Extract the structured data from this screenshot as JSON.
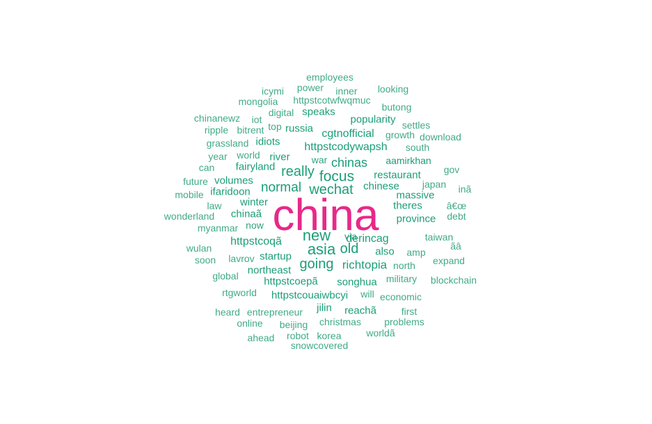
{
  "colors": {
    "primary": "#E7298A",
    "dark": "#1B9E77",
    "mid": "#2FA481",
    "light": "#40AA88"
  },
  "words": [
    {
      "text": "china",
      "tone": "primary"
    },
    {
      "text": "new",
      "tone": "dark"
    },
    {
      "text": "asia",
      "tone": "dark"
    },
    {
      "text": "going",
      "tone": "dark"
    },
    {
      "text": "old",
      "tone": "dark"
    },
    {
      "text": "focus",
      "tone": "dark"
    },
    {
      "text": "really",
      "tone": "dark"
    },
    {
      "text": "normal",
      "tone": "dark"
    },
    {
      "text": "wechat",
      "tone": "dark"
    },
    {
      "text": "chinas",
      "tone": "dark"
    },
    {
      "text": "richtopia",
      "tone": "dark"
    },
    {
      "text": "httpstcodywapsh",
      "tone": "dark"
    },
    {
      "text": "cgtnofficial",
      "tone": "dark"
    },
    {
      "text": "httpstcoqã",
      "tone": "dark"
    },
    {
      "text": "derincag",
      "tone": "dark"
    },
    {
      "text": "songhua",
      "tone": "dark"
    },
    {
      "text": "httpstcoepã",
      "tone": "dark"
    },
    {
      "text": "httpstcouaiwbcyi",
      "tone": "dark"
    },
    {
      "text": "reachã",
      "tone": "dark"
    },
    {
      "text": "chinese",
      "tone": "dark"
    },
    {
      "text": "restaurant",
      "tone": "dark"
    },
    {
      "text": "aamirkhan",
      "tone": "dark"
    },
    {
      "text": "popularity",
      "tone": "dark"
    },
    {
      "text": "speaks",
      "tone": "dark"
    },
    {
      "text": "russia",
      "tone": "dark"
    },
    {
      "text": "river",
      "tone": "dark"
    },
    {
      "text": "fairyland",
      "tone": "dark"
    },
    {
      "text": "volumes",
      "tone": "dark"
    },
    {
      "text": "ifaridoon",
      "tone": "dark"
    },
    {
      "text": "winter",
      "tone": "dark"
    },
    {
      "text": "chinaã",
      "tone": "dark"
    },
    {
      "text": "northeast",
      "tone": "dark"
    },
    {
      "text": "startup",
      "tone": "dark"
    },
    {
      "text": "massive",
      "tone": "dark"
    },
    {
      "text": "theres",
      "tone": "dark"
    },
    {
      "text": "province",
      "tone": "dark"
    },
    {
      "text": "also",
      "tone": "dark"
    },
    {
      "text": "jilin",
      "tone": "dark"
    },
    {
      "text": "idiots",
      "tone": "dark"
    },
    {
      "text": "via",
      "tone": "mid"
    },
    {
      "text": "now",
      "tone": "mid"
    },
    {
      "text": "war",
      "tone": "mid"
    },
    {
      "text": "employees",
      "tone": "light"
    },
    {
      "text": "power",
      "tone": "light"
    },
    {
      "text": "icymi",
      "tone": "light"
    },
    {
      "text": "inner",
      "tone": "light"
    },
    {
      "text": "looking",
      "tone": "light"
    },
    {
      "text": "mongolia",
      "tone": "light"
    },
    {
      "text": "httpstcotwfwqmuc",
      "tone": "light"
    },
    {
      "text": "butong",
      "tone": "light"
    },
    {
      "text": "digital",
      "tone": "light"
    },
    {
      "text": "chinanewz",
      "tone": "light"
    },
    {
      "text": "iot",
      "tone": "light"
    },
    {
      "text": "settles",
      "tone": "light"
    },
    {
      "text": "ripple",
      "tone": "light"
    },
    {
      "text": "bitrent",
      "tone": "light"
    },
    {
      "text": "top",
      "tone": "light"
    },
    {
      "text": "growth",
      "tone": "light"
    },
    {
      "text": "download",
      "tone": "light"
    },
    {
      "text": "grassland",
      "tone": "light"
    },
    {
      "text": "south",
      "tone": "light"
    },
    {
      "text": "year",
      "tone": "light"
    },
    {
      "text": "world",
      "tone": "light"
    },
    {
      "text": "can",
      "tone": "light"
    },
    {
      "text": "gov",
      "tone": "light"
    },
    {
      "text": "future",
      "tone": "light"
    },
    {
      "text": "japan",
      "tone": "light"
    },
    {
      "text": "mobile",
      "tone": "light"
    },
    {
      "text": "inã",
      "tone": "light"
    },
    {
      "text": "law",
      "tone": "light"
    },
    {
      "text": "â€œ",
      "tone": "light"
    },
    {
      "text": "wonderland",
      "tone": "light"
    },
    {
      "text": "debt",
      "tone": "light"
    },
    {
      "text": "myanmar",
      "tone": "light"
    },
    {
      "text": "taiwan",
      "tone": "light"
    },
    {
      "text": "ãâ",
      "tone": "light"
    },
    {
      "text": "wulan",
      "tone": "light"
    },
    {
      "text": "amp",
      "tone": "light"
    },
    {
      "text": "soon",
      "tone": "light"
    },
    {
      "text": "lavrov",
      "tone": "light"
    },
    {
      "text": "expand",
      "tone": "light"
    },
    {
      "text": "north",
      "tone": "light"
    },
    {
      "text": "global",
      "tone": "light"
    },
    {
      "text": "military",
      "tone": "light"
    },
    {
      "text": "blockchain",
      "tone": "light"
    },
    {
      "text": "rtgworld",
      "tone": "light"
    },
    {
      "text": "will",
      "tone": "light"
    },
    {
      "text": "economic",
      "tone": "light"
    },
    {
      "text": "heard",
      "tone": "light"
    },
    {
      "text": "entrepreneur",
      "tone": "light"
    },
    {
      "text": "first",
      "tone": "light"
    },
    {
      "text": "online",
      "tone": "light"
    },
    {
      "text": "beijing",
      "tone": "light"
    },
    {
      "text": "christmas",
      "tone": "light"
    },
    {
      "text": "problems",
      "tone": "light"
    },
    {
      "text": "worldã",
      "tone": "light"
    },
    {
      "text": "ahead",
      "tone": "light"
    },
    {
      "text": "robot",
      "tone": "light"
    },
    {
      "text": "korea",
      "tone": "light"
    },
    {
      "text": "snowcovered",
      "tone": "light"
    }
  ]
}
